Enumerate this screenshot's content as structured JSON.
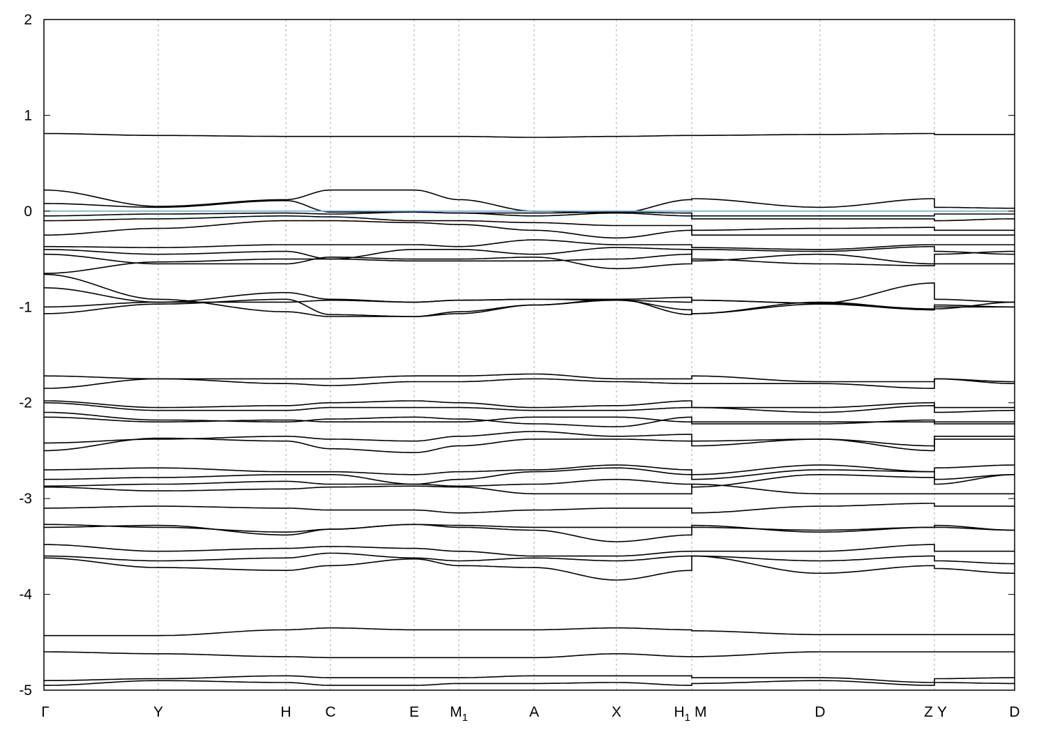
{
  "chart_data": {
    "type": "line",
    "title": "",
    "xlabel": "",
    "ylabel": "",
    "ylim": [
      -5,
      2
    ],
    "yticks": [
      2,
      1,
      0,
      -1,
      -2,
      -3,
      -4,
      -5
    ],
    "grid": "vertical dashed lines at high-symmetry points",
    "legend": "none",
    "fermi_level": 0,
    "colors": {
      "bands": "#000000",
      "fermi": "#56b4e9",
      "grid": "#aaaaaa"
    },
    "kpoints": [
      {
        "label": "Γ",
        "sub": "",
        "k": 0
      },
      {
        "label": "Y",
        "sub": "",
        "k": 1.64
      },
      {
        "label": "H",
        "sub": "",
        "k": 3.47
      },
      {
        "label": "C",
        "sub": "",
        "k": 4.11
      },
      {
        "label": "E",
        "sub": "",
        "k": 5.31
      },
      {
        "label": "M",
        "sub": "1",
        "k": 5.95
      },
      {
        "label": "A",
        "sub": "",
        "k": 7.03
      },
      {
        "label": "X",
        "sub": "",
        "k": 8.21
      },
      {
        "label": "H",
        "sub": "1",
        "k": 9.29
      },
      {
        "label": "M",
        "sub": "",
        "k": 9.29
      },
      {
        "label": "D",
        "sub": "",
        "k": 11.13
      },
      {
        "label": "Z",
        "sub": "",
        "k": 12.77
      },
      {
        "label": "Y",
        "sub": "",
        "k": 12.77
      },
      {
        "label": "D",
        "sub": "",
        "k": 13.92
      }
    ],
    "bands": [
      [
        0.81,
        0.79,
        0.78,
        0.78,
        0.78,
        0.78,
        0.77,
        0.78,
        0.79,
        0.79,
        0.8,
        0.81,
        0.8,
        0.8
      ],
      [
        0.22,
        0.05,
        0.12,
        0.22,
        0.22,
        0.12,
        0.0,
        -0.02,
        0.12,
        0.13,
        0.04,
        0.13,
        0.04,
        0.03
      ],
      [
        0.08,
        0.04,
        0.11,
        -0.01,
        -0.01,
        -0.02,
        -0.02,
        -0.01,
        -0.02,
        -0.05,
        -0.05,
        -0.05,
        -0.03,
        -0.03
      ],
      [
        -0.05,
        -0.03,
        -0.02,
        -0.03,
        -0.01,
        -0.02,
        -0.05,
        -0.02,
        -0.05,
        -0.08,
        -0.08,
        -0.08,
        -0.1,
        -0.08
      ],
      [
        -0.1,
        -0.08,
        -0.05,
        -0.06,
        -0.1,
        -0.1,
        -0.12,
        -0.15,
        -0.15,
        -0.2,
        -0.18,
        -0.17,
        -0.2,
        -0.2
      ],
      [
        -0.25,
        -0.18,
        -0.1,
        -0.1,
        -0.12,
        -0.14,
        -0.2,
        -0.28,
        -0.2,
        -0.25,
        -0.25,
        -0.25,
        -0.25,
        -0.25
      ],
      [
        -0.37,
        -0.38,
        -0.35,
        -0.35,
        -0.35,
        -0.37,
        -0.3,
        -0.35,
        -0.35,
        -0.38,
        -0.4,
        -0.35,
        -0.35,
        -0.35
      ],
      [
        -0.4,
        -0.45,
        -0.42,
        -0.5,
        -0.4,
        -0.4,
        -0.45,
        -0.38,
        -0.4,
        -0.52,
        -0.45,
        -0.55,
        -0.45,
        -0.42
      ],
      [
        -0.45,
        -0.55,
        -0.55,
        -0.48,
        -0.5,
        -0.5,
        -0.48,
        -0.6,
        -0.55,
        -0.5,
        -0.55,
        -0.57,
        -0.55,
        -0.55
      ],
      [
        -0.65,
        -0.53,
        -0.5,
        -0.5,
        -0.52,
        -0.52,
        -0.52,
        -0.5,
        -0.45,
        -0.4,
        -0.42,
        -0.37,
        -0.42,
        -0.45
      ],
      [
        -0.66,
        -0.92,
        -1.05,
        -1.1,
        -1.1,
        -1.07,
        -0.98,
        -0.92,
        -0.9,
        -0.93,
        -0.96,
        -0.75,
        -0.92,
        -0.95
      ],
      [
        -0.8,
        -0.95,
        -0.95,
        -0.93,
        -0.95,
        -0.93,
        -0.92,
        -0.92,
        -1.08,
        -1.07,
        -0.95,
        -1.03,
        -1.02,
        -0.95
      ],
      [
        -1.0,
        -0.95,
        -0.85,
        -0.92,
        -0.95,
        -0.93,
        -0.92,
        -0.93,
        -0.95,
        -0.93,
        -0.96,
        -1.02,
        -1.0,
        -1.0
      ],
      [
        -1.07,
        -0.97,
        -0.92,
        -1.08,
        -1.1,
        -1.05,
        -0.98,
        -0.93,
        -1.03,
        -1.07,
        -0.97,
        -1.03,
        -0.98,
        -1.0
      ],
      [
        -1.72,
        -1.75,
        -1.75,
        -1.75,
        -1.72,
        -1.72,
        -1.7,
        -1.75,
        -1.75,
        -1.72,
        -1.78,
        -1.78,
        -1.75,
        -1.78
      ],
      [
        -1.85,
        -1.75,
        -1.8,
        -1.82,
        -1.78,
        -1.78,
        -1.75,
        -1.78,
        -1.8,
        -1.8,
        -1.8,
        -1.85,
        -1.75,
        -1.8
      ],
      [
        -1.98,
        -2.05,
        -2.03,
        -2.0,
        -1.98,
        -2.0,
        -2.05,
        -2.03,
        -1.98,
        -2.05,
        -2.05,
        -2.0,
        -2.05,
        -2.05
      ],
      [
        -2.0,
        -2.08,
        -2.08,
        -2.05,
        -2.05,
        -2.05,
        -2.08,
        -2.08,
        -2.05,
        -2.05,
        -2.1,
        -2.03,
        -2.1,
        -2.08
      ],
      [
        -2.1,
        -2.18,
        -2.2,
        -2.17,
        -2.15,
        -2.17,
        -2.22,
        -2.25,
        -2.15,
        -2.2,
        -2.2,
        -2.2,
        -2.2,
        -2.2
      ],
      [
        -2.15,
        -2.2,
        -2.18,
        -2.2,
        -2.2,
        -2.2,
        -2.15,
        -2.15,
        -2.2,
        -2.22,
        -2.22,
        -2.18,
        -2.22,
        -2.22
      ],
      [
        -2.42,
        -2.38,
        -2.35,
        -2.38,
        -2.4,
        -2.35,
        -2.3,
        -2.35,
        -2.33,
        -2.4,
        -2.38,
        -2.45,
        -2.38,
        -2.38
      ],
      [
        -2.5,
        -2.37,
        -2.4,
        -2.48,
        -2.52,
        -2.45,
        -2.38,
        -2.38,
        -2.4,
        -2.45,
        -2.38,
        -2.5,
        -2.35,
        -2.35
      ],
      [
        -2.7,
        -2.68,
        -2.72,
        -2.72,
        -2.75,
        -2.72,
        -2.7,
        -2.65,
        -2.7,
        -2.75,
        -2.65,
        -2.72,
        -2.68,
        -2.65
      ],
      [
        -2.8,
        -2.78,
        -2.75,
        -2.75,
        -2.85,
        -2.8,
        -2.72,
        -2.68,
        -2.75,
        -2.8,
        -2.7,
        -2.72,
        -2.85,
        -2.75
      ],
      [
        -2.87,
        -2.85,
        -2.82,
        -2.85,
        -2.85,
        -2.87,
        -2.85,
        -2.8,
        -2.85,
        -2.88,
        -2.75,
        -2.78,
        -2.8,
        -2.75
      ],
      [
        -2.88,
        -2.92,
        -2.9,
        -2.88,
        -2.87,
        -2.88,
        -2.95,
        -2.95,
        -2.95,
        -2.85,
        -2.95,
        -2.95,
        -2.95,
        -2.95
      ],
      [
        -3.1,
        -3.08,
        -3.1,
        -3.12,
        -3.12,
        -3.15,
        -3.12,
        -3.1,
        -3.1,
        -3.15,
        -3.08,
        -3.05,
        -3.08,
        -3.08
      ],
      [
        -3.27,
        -3.3,
        -3.35,
        -3.32,
        -3.27,
        -3.28,
        -3.3,
        -3.3,
        -3.3,
        -3.28,
        -3.35,
        -3.3,
        -3.28,
        -3.33
      ],
      [
        -3.3,
        -3.28,
        -3.38,
        -3.32,
        -3.27,
        -3.3,
        -3.33,
        -3.45,
        -3.38,
        -3.3,
        -3.33,
        -3.3,
        -3.3,
        -3.33
      ],
      [
        -3.48,
        -3.55,
        -3.52,
        -3.5,
        -3.52,
        -3.55,
        -3.6,
        -3.6,
        -3.55,
        -3.55,
        -3.55,
        -3.48,
        -3.55,
        -3.55
      ],
      [
        -3.6,
        -3.65,
        -3.62,
        -3.57,
        -3.62,
        -3.65,
        -3.62,
        -3.65,
        -3.6,
        -3.6,
        -3.65,
        -3.6,
        -3.65,
        -3.68
      ],
      [
        -3.62,
        -3.72,
        -3.75,
        -3.7,
        -3.63,
        -3.7,
        -3.72,
        -3.85,
        -3.75,
        -3.6,
        -3.78,
        -3.7,
        -3.73,
        -3.78
      ],
      [
        -4.43,
        -4.43,
        -4.37,
        -4.35,
        -4.37,
        -4.37,
        -4.37,
        -4.35,
        -4.37,
        -4.38,
        -4.42,
        -4.42,
        -4.42,
        -4.42
      ],
      [
        -4.6,
        -4.62,
        -4.65,
        -4.66,
        -4.66,
        -4.66,
        -4.66,
        -4.62,
        -4.65,
        -4.65,
        -4.6,
        -4.6,
        -4.6,
        -4.6
      ],
      [
        -4.9,
        -4.88,
        -4.85,
        -4.87,
        -4.87,
        -4.87,
        -4.85,
        -4.85,
        -4.85,
        -4.87,
        -4.87,
        -4.92,
        -4.88,
        -4.87
      ],
      [
        -4.95,
        -4.9,
        -4.92,
        -4.95,
        -4.95,
        -4.93,
        -4.93,
        -4.92,
        -4.95,
        -4.93,
        -4.9,
        -4.95,
        -4.92,
        -4.93
      ]
    ]
  }
}
